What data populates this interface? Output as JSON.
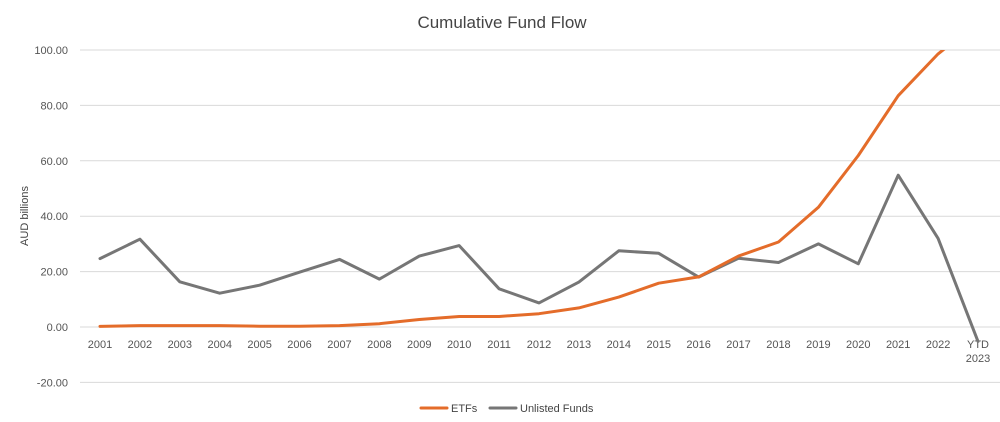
{
  "chart_data": {
    "type": "line",
    "title": "Cumulative Fund Flow",
    "xlabel": "",
    "ylabel": "AUD billions",
    "ylim": [
      -20,
      100
    ],
    "yticks": [
      "100.00",
      "80.00",
      "60.00",
      "40.00",
      "20.00",
      "0.00",
      "-20.00"
    ],
    "ytick_values": [
      100,
      80,
      60,
      40,
      20,
      0,
      -20
    ],
    "categories": [
      "2001",
      "2002",
      "2003",
      "2004",
      "2005",
      "2006",
      "2007",
      "2008",
      "2009",
      "2010",
      "2011",
      "2012",
      "2013",
      "2014",
      "2015",
      "2016",
      "2017",
      "2018",
      "2019",
      "2020",
      "2021",
      "2022",
      "YTD 2023"
    ],
    "grid": true,
    "legend_position": "bottom",
    "series": [
      {
        "name": "ETFs",
        "color": "#e46c2a",
        "values": [
          0.2,
          0.5,
          0.5,
          0.5,
          0.3,
          0.3,
          0.5,
          1.2,
          2.7,
          3.8,
          3.8,
          4.8,
          6.9,
          10.8,
          15.8,
          18.1,
          25.6,
          30.7,
          43.2,
          61.9,
          83.5,
          98.6,
          110.0
        ]
      },
      {
        "name": "Unlisted Funds",
        "color": "#767676",
        "values": [
          24.7,
          31.7,
          16.3,
          12.2,
          15.1,
          19.8,
          24.4,
          17.3,
          25.6,
          29.4,
          13.8,
          8.7,
          16.2,
          27.5,
          26.6,
          18.0,
          24.8,
          23.3,
          30.0,
          22.8,
          54.8,
          32.0,
          -5.2
        ]
      }
    ]
  }
}
